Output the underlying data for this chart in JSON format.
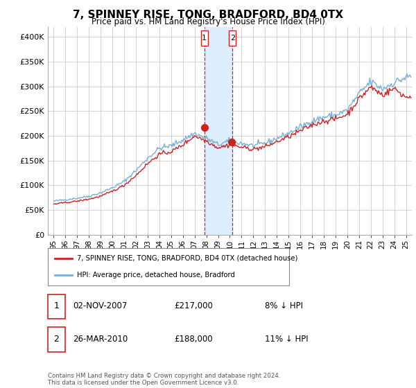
{
  "title": "7, SPINNEY RISE, TONG, BRADFORD, BD4 0TX",
  "subtitle": "Price paid vs. HM Land Registry's House Price Index (HPI)",
  "hpi_color": "#7aaed6",
  "sale_color": "#cc2222",
  "shade_color": "#ddeeff",
  "vline_color": "#cc2222",
  "ylim": [
    0,
    420000
  ],
  "yticks": [
    0,
    50000,
    100000,
    150000,
    200000,
    250000,
    300000,
    350000,
    400000
  ],
  "xlim_min": 1995.0,
  "xlim_max": 2025.5,
  "vline1_x": 2007.83,
  "vline2_x": 2010.23,
  "sale_values": [
    217000,
    188000
  ],
  "legend_label1": "7, SPINNEY RISE, TONG, BRADFORD, BD4 0TX (detached house)",
  "legend_label2": "HPI: Average price, detached house, Bradford",
  "ann1_date": "02-NOV-2007",
  "ann1_price": "£217,000",
  "ann1_hpi": "8% ↓ HPI",
  "ann2_date": "26-MAR-2010",
  "ann2_price": "£188,000",
  "ann2_hpi": "11% ↓ HPI",
  "footer": "Contains HM Land Registry data © Crown copyright and database right 2024.\nThis data is licensed under the Open Government Licence v3.0.",
  "bg_color": "#ffffff",
  "grid_color": "#cccccc",
  "xtick_labels": [
    "95",
    "96",
    "97",
    "98",
    "99",
    "00",
    "01",
    "02",
    "03",
    "04",
    "05",
    "06",
    "07",
    "08",
    "09",
    "10",
    "11",
    "12",
    "13",
    "14",
    "15",
    "16",
    "17",
    "18",
    "19",
    "20",
    "21",
    "22",
    "23",
    "24",
    "25"
  ],
  "xtick_positions": [
    1995,
    1996,
    1997,
    1998,
    1999,
    2000,
    2001,
    2002,
    2003,
    2004,
    2005,
    2006,
    2007,
    2008,
    2009,
    2010,
    2011,
    2012,
    2013,
    2014,
    2015,
    2016,
    2017,
    2018,
    2019,
    2020,
    2021,
    2022,
    2023,
    2024,
    2025
  ]
}
